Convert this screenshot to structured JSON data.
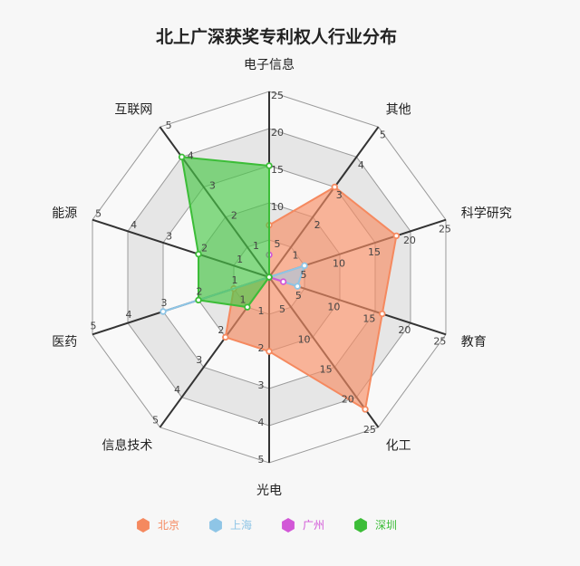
{
  "chart_data": {
    "type": "radar",
    "title": "北上广深获奖专利权人行业分布",
    "axes": [
      {
        "label": "电子信息",
        "max": 25,
        "ticks": [
          "5",
          "10",
          "15",
          "20",
          "25"
        ]
      },
      {
        "label": "其他",
        "max": 5,
        "ticks": [
          "1",
          "2",
          "3",
          "4",
          "5"
        ]
      },
      {
        "label": "科学研究",
        "max": 25,
        "ticks": [
          "5",
          "10",
          "15",
          "20",
          "25"
        ]
      },
      {
        "label": "教育",
        "max": 25,
        "ticks": [
          "5",
          "10",
          "15",
          "20",
          "25"
        ]
      },
      {
        "label": "化工",
        "max": 25,
        "ticks": [
          "5",
          "10",
          "15",
          "20",
          "25"
        ]
      },
      {
        "label": "光电",
        "max": 5,
        "ticks": [
          "1",
          "2",
          "3",
          "4",
          "5"
        ]
      },
      {
        "label": "信息技术",
        "max": 5,
        "ticks": [
          "1",
          "2",
          "3",
          "4",
          "5"
        ]
      },
      {
        "label": "医药",
        "max": 5,
        "ticks": [
          "1",
          "2",
          "3",
          "4",
          "5"
        ]
      },
      {
        "label": "能源",
        "max": 5,
        "ticks": [
          "1",
          "2",
          "3",
          "4",
          "5"
        ]
      },
      {
        "label": "互联网",
        "max": 5,
        "ticks": [
          "1",
          "2",
          "3",
          "4",
          "5"
        ]
      }
    ],
    "series": [
      {
        "name": "北京",
        "color": "#f5895f",
        "fill": "#f88d64",
        "fillOpacity": 0.65,
        "values": [
          7,
          3,
          18,
          16,
          22,
          2,
          2,
          1,
          0,
          0
        ]
      },
      {
        "name": "上海",
        "color": "#8ec5e6",
        "fill": "#9cc9ea",
        "fillOpacity": 0.55,
        "values": [
          0,
          0,
          5,
          4,
          0,
          0,
          0,
          3,
          0,
          0
        ]
      },
      {
        "name": "广州",
        "color": "#d257d7",
        "fill": "#d257d7",
        "fillOpacity": 0.5,
        "values": [
          3,
          0,
          0,
          2,
          0,
          0,
          0,
          0,
          0,
          0
        ]
      },
      {
        "name": "深圳",
        "color": "#3cbd38",
        "fill": "#48c846",
        "fillOpacity": 0.65,
        "values": [
          15,
          0,
          0,
          0,
          0,
          0,
          1,
          2,
          2,
          4
        ]
      }
    ],
    "grid": true,
    "legend_position": "bottom"
  }
}
